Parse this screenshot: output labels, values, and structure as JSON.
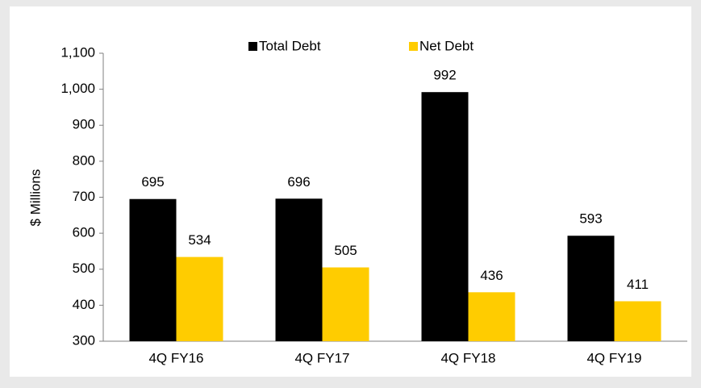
{
  "chart_data": {
    "type": "bar",
    "ylabel": "$ Millions",
    "categories": [
      "4Q FY16",
      "4Q FY17",
      "4Q FY18",
      "4Q FY19"
    ],
    "series": [
      {
        "name": "Total Debt",
        "color": "#000000",
        "values": [
          695,
          696,
          992,
          593
        ]
      },
      {
        "name": "Net Debt",
        "color": "#ffcc00",
        "values": [
          534,
          505,
          436,
          411
        ]
      }
    ],
    "ylim": [
      300,
      1100
    ],
    "yticks": [
      300,
      400,
      500,
      600,
      700,
      800,
      900,
      {
        "value": 1000,
        "label": "1,000"
      },
      {
        "value": 1100,
        "label": "1,100"
      }
    ],
    "legend": "top"
  }
}
